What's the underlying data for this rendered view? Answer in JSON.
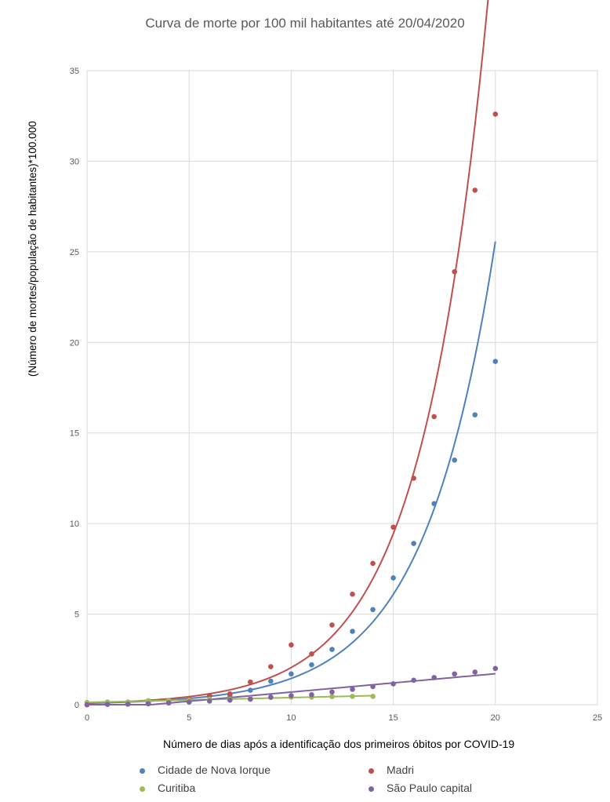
{
  "chart_data": {
    "type": "scatter",
    "title": "Curva de morte por 100 mil habitantes até 20/04/2020",
    "xlabel": "Número  de dias após a identificação dos primeiros óbitos por COVID-19",
    "ylabel": "(Número de mortes/população de habitantes)*100.000",
    "xlim": [
      0,
      25
    ],
    "ylim": [
      0,
      35
    ],
    "x_ticks": [
      "0",
      "5",
      "10",
      "15",
      "20",
      "25"
    ],
    "y_ticks": [
      "0",
      "5",
      "10",
      "15",
      "20",
      "25",
      "30",
      "35"
    ],
    "grid": "vertical and horizontal",
    "legend_position": "bottom",
    "series": [
      {
        "name": "Cidade de Nova Iorque",
        "color": "#4F81BD",
        "trendline": "exponential",
        "x": [
          0,
          1,
          2,
          3,
          4,
          5,
          6,
          7,
          8,
          9,
          10,
          11,
          12,
          13,
          14,
          15,
          16,
          17,
          18,
          19,
          20
        ],
        "y": [
          0,
          0.02,
          0.03,
          0.05,
          0.1,
          0.15,
          0.3,
          0.5,
          0.8,
          1.3,
          1.7,
          2.2,
          3.05,
          4.05,
          5.25,
          7.0,
          8.9,
          11.1,
          13.5,
          16.0,
          18.95
        ]
      },
      {
        "name": "Madri",
        "color": "#C0504D",
        "trendline": "exponential",
        "x": [
          0,
          1,
          2,
          3,
          4,
          5,
          6,
          7,
          8,
          9,
          10,
          11,
          12,
          13,
          14,
          15,
          16,
          17,
          18,
          19,
          20
        ],
        "y": [
          0,
          0.05,
          0.08,
          0.1,
          0.2,
          0.3,
          0.5,
          0.6,
          1.25,
          2.1,
          3.3,
          2.8,
          4.4,
          6.1,
          7.8,
          9.8,
          12.5,
          15.9,
          23.9,
          28.4,
          32.6
        ]
      },
      {
        "name": "Curitiba",
        "color": "#9BBB59",
        "trendline": "linear",
        "x": [
          0,
          1,
          2,
          3,
          4,
          5,
          6,
          7,
          8,
          9,
          10,
          11,
          12,
          13,
          14
        ],
        "y": [
          0.12,
          0.15,
          0.15,
          0.22,
          0.24,
          0.25,
          0.3,
          0.3,
          0.35,
          0.4,
          0.42,
          0.42,
          0.45,
          0.46,
          0.46
        ]
      },
      {
        "name": "São Paulo capital",
        "color": "#8064A2",
        "trendline": "linear",
        "x": [
          0,
          1,
          2,
          3,
          4,
          5,
          6,
          7,
          8,
          9,
          10,
          11,
          12,
          13,
          14,
          15,
          16,
          17,
          18,
          19,
          20
        ],
        "y": [
          0,
          0.02,
          0.03,
          0.05,
          0.1,
          0.15,
          0.2,
          0.25,
          0.3,
          0.42,
          0.5,
          0.55,
          0.7,
          0.85,
          1.0,
          1.15,
          1.35,
          1.5,
          1.7,
          1.8,
          2.0
        ]
      }
    ]
  }
}
